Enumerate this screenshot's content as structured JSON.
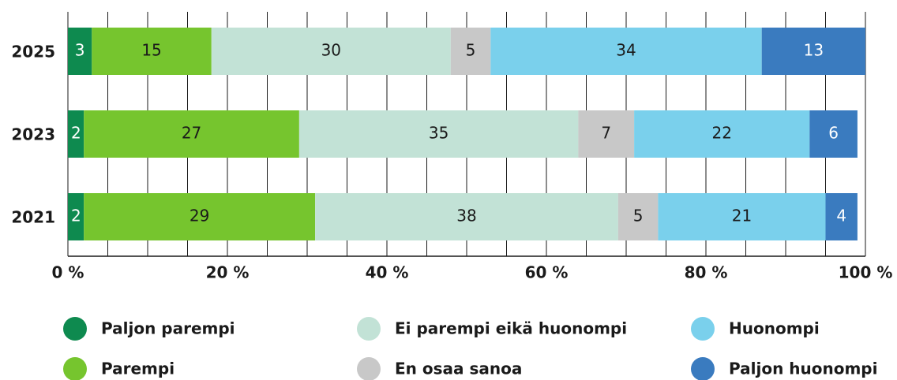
{
  "chart_data": {
    "type": "stacked-bar-horizontal",
    "categories": [
      "2025",
      "2023",
      "2021"
    ],
    "series": [
      {
        "name": "Paljon parempi",
        "color": "#0e8a4f",
        "label_color": "#ffffff",
        "values": [
          3,
          2,
          2
        ]
      },
      {
        "name": "Parempi",
        "color": "#76c52e",
        "label_color": "#1a1a1a",
        "values": [
          15,
          27,
          29
        ]
      },
      {
        "name": "Ei parempi eikä huonompi",
        "color": "#c2e2d6",
        "label_color": "#1a1a1a",
        "values": [
          30,
          35,
          38
        ]
      },
      {
        "name": "En osaa sanoa",
        "color": "#c8c8c8",
        "label_color": "#1a1a1a",
        "values": [
          5,
          7,
          5
        ]
      },
      {
        "name": "Huonompi",
        "color": "#7ad0ec",
        "label_color": "#1a1a1a",
        "values": [
          34,
          22,
          21
        ]
      },
      {
        "name": "Paljon huonompi",
        "color": "#3a7bbf",
        "label_color": "#ffffff",
        "values": [
          13,
          6,
          4
        ]
      }
    ],
    "xlim": [
      0,
      100
    ],
    "xticks": [
      {
        "value": 0,
        "label": "0 %"
      },
      {
        "value": 20,
        "label": "20 %"
      },
      {
        "value": 40,
        "label": "40 %"
      },
      {
        "value": 60,
        "label": "60 %"
      },
      {
        "value": 80,
        "label": "80 %"
      },
      {
        "value": 100,
        "label": "100 %"
      }
    ],
    "xminorticks": [
      0,
      5,
      10,
      15,
      20,
      25,
      30,
      35,
      40,
      45,
      50,
      55,
      60,
      65,
      70,
      75,
      80,
      85,
      90,
      95,
      100
    ],
    "grid": true,
    "legend": "bottom"
  }
}
